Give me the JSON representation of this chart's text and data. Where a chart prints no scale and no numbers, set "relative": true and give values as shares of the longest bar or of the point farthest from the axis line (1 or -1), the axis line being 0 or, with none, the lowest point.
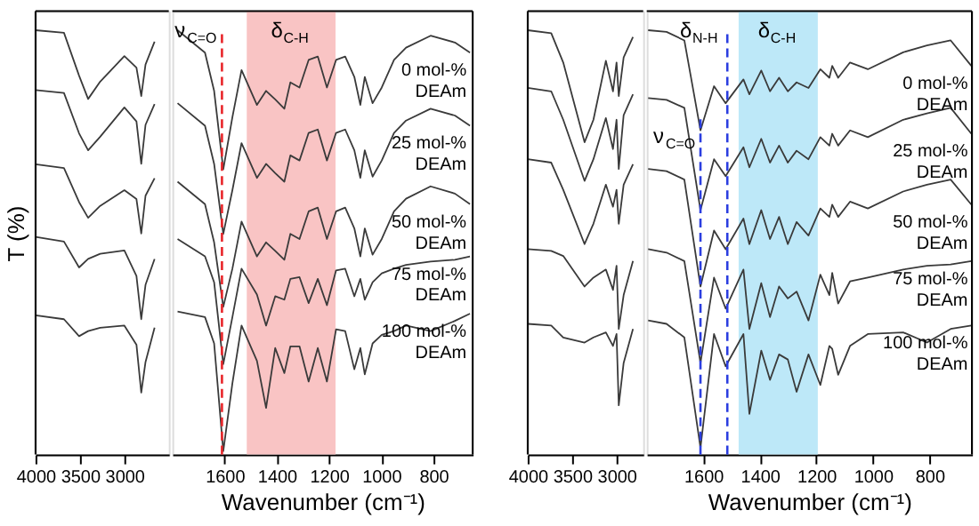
{
  "chart_data": [
    {
      "type": "line",
      "relative": true,
      "ylabel": "T (%)",
      "tick_labels": "x",
      "x": [
        4000,
        3680,
        3510,
        3408,
        3272,
        3000,
        2864,
        2810,
        2762,
        2660
      ],
      "xlim": [
        4000,
        2500
      ],
      "xticks": [
        4000,
        3500,
        3000
      ],
      "series": [
        {
          "color": "#3a3a3a",
          "values": [
            1.0,
            0.994,
            0.893,
            0.838,
            0.879,
            0.939,
            0.912,
            0.845,
            0.919,
            0.973
          ]
        },
        {
          "color": "#3a3a3a",
          "values": [
            0.859,
            0.852,
            0.757,
            0.717,
            0.749,
            0.818,
            0.785,
            0.685,
            0.777,
            0.826
          ]
        },
        {
          "color": "#3a3a3a",
          "values": [
            0.684,
            0.675,
            0.595,
            0.558,
            0.586,
            0.623,
            0.602,
            0.521,
            0.61,
            0.651
          ]
        },
        {
          "color": "#3a3a3a",
          "values": [
            0.513,
            0.502,
            0.441,
            0.461,
            0.473,
            0.481,
            0.421,
            0.319,
            0.4,
            0.461
          ]
        },
        {
          "color": "#3a3a3a",
          "values": [
            0.328,
            0.319,
            0.279,
            0.291,
            0.299,
            0.304,
            0.259,
            0.146,
            0.218,
            0.299
          ]
        }
      ]
    },
    {
      "type": "line",
      "relative": true,
      "xlabel": "Wavenumber (cm⁻¹)",
      "tick_labels": "x",
      "x": [
        1780,
        1675,
        1640,
        1605,
        1570,
        1535,
        1476,
        1441,
        1406,
        1371,
        1348,
        1313,
        1278,
        1243,
        1208,
        1173,
        1138,
        1103,
        1080,
        1063,
        1033,
        998,
        951,
        905,
        811,
        718,
        660
      ],
      "xlim": [
        1800,
        650
      ],
      "xticks": [
        1600,
        1400,
        1200,
        1000,
        800
      ],
      "bands": [
        {
          "axis": "x",
          "from": 1515,
          "to": 1175,
          "label": "δ$_{C-H}$",
          "color": "#f9c4c4"
        }
      ],
      "ref_lines": [
        {
          "axis": "x",
          "value": 1610,
          "label": "ν$_{C=O}$",
          "color": "#e8262a",
          "line_style": "dashed"
        }
      ],
      "series": [
        {
          "name": "0 mol-% DEAm",
          "color": "#3a3a3a",
          "values": [
            1.0,
            0.947,
            0.857,
            0.672,
            0.795,
            0.906,
            0.824,
            0.857,
            0.837,
            0.815,
            0.877,
            0.865,
            0.93,
            0.938,
            0.865,
            0.93,
            0.938,
            0.89,
            0.824,
            0.89,
            0.828,
            0.865,
            0.93,
            0.959,
            0.987,
            0.971,
            0.947
          ]
        },
        {
          "name": "25 mol-% DEAm",
          "color": "#3a3a3a",
          "values": [
            0.828,
            0.775,
            0.685,
            0.52,
            0.623,
            0.734,
            0.652,
            0.685,
            0.663,
            0.643,
            0.705,
            0.693,
            0.758,
            0.766,
            0.693,
            0.758,
            0.766,
            0.717,
            0.652,
            0.717,
            0.655,
            0.693,
            0.758,
            0.787,
            0.815,
            0.799,
            0.775
          ]
        },
        {
          "name": "50 mol-% DEAm",
          "color": "#3a3a3a",
          "values": [
            0.643,
            0.59,
            0.5,
            0.348,
            0.438,
            0.549,
            0.467,
            0.5,
            0.48,
            0.459,
            0.52,
            0.508,
            0.573,
            0.582,
            0.508,
            0.573,
            0.582,
            0.533,
            0.467,
            0.533,
            0.471,
            0.508,
            0.573,
            0.603,
            0.632,
            0.615,
            0.59
          ]
        },
        {
          "name": "75 mol-% DEAm",
          "color": "#3a3a3a",
          "values": [
            0.508,
            0.467,
            0.406,
            0.213,
            0.324,
            0.438,
            0.377,
            0.304,
            0.373,
            0.365,
            0.414,
            0.418,
            0.357,
            0.414,
            0.352,
            0.434,
            0.438,
            0.373,
            0.414,
            0.365,
            0.406,
            0.427,
            0.438,
            0.447,
            0.455,
            0.459,
            0.467
          ]
        },
        {
          "name": "100 mol-% DEAm",
          "color": "#3a3a3a",
          "values": [
            0.337,
            0.324,
            0.262,
            0.008,
            0.168,
            0.304,
            0.221,
            0.11,
            0.251,
            0.192,
            0.255,
            0.255,
            0.172,
            0.251,
            0.172,
            0.295,
            0.291,
            0.201,
            0.251,
            0.189,
            0.262,
            0.282,
            0.291,
            0.304,
            0.291,
            0.315,
            0.332
          ]
        }
      ]
    },
    {
      "type": "line",
      "relative": true,
      "tick_labels": "x",
      "x": [
        4000,
        3735,
        3600,
        3360,
        3260,
        3120,
        3040,
        3000,
        2975,
        2920,
        2815
      ],
      "xlim": [
        4000,
        2700
      ],
      "xticks": [
        4000,
        3500,
        3000
      ],
      "series": [
        {
          "color": "#3a3a3a",
          "values": [
            1.0,
            0.993,
            0.924,
            0.736,
            0.789,
            0.928,
            0.856,
            0.924,
            0.845,
            0.936,
            0.984
          ]
        },
        {
          "color": "#3a3a3a",
          "values": [
            0.864,
            0.856,
            0.789,
            0.645,
            0.696,
            0.793,
            0.72,
            0.789,
            0.673,
            0.8,
            0.849
          ]
        },
        {
          "color": "#3a3a3a",
          "values": [
            0.696,
            0.688,
            0.624,
            0.496,
            0.544,
            0.636,
            0.584,
            0.624,
            0.544,
            0.636,
            0.684
          ]
        },
        {
          "color": "#3a3a3a",
          "values": [
            0.484,
            0.48,
            0.468,
            0.396,
            0.417,
            0.436,
            0.388,
            0.445,
            0.296,
            0.376,
            0.456
          ]
        },
        {
          "color": "#3a3a3a",
          "values": [
            0.308,
            0.304,
            0.276,
            0.264,
            0.276,
            0.288,
            0.256,
            0.284,
            0.116,
            0.216,
            0.296
          ]
        }
      ]
    },
    {
      "type": "line",
      "relative": true,
      "xlabel": "Wavenumber (cm⁻¹)",
      "tick_labels": "x",
      "x": [
        1795,
        1730,
        1667,
        1610,
        1562,
        1521,
        1458,
        1437,
        1395,
        1364,
        1332,
        1301,
        1270,
        1228,
        1186,
        1154,
        1144,
        1123,
        1081,
        1018,
        893,
        809,
        725,
        652
      ],
      "xlim": [
        1800,
        650
      ],
      "xticks": [
        1600,
        1400,
        1200,
        1000,
        800
      ],
      "bands": [
        {
          "axis": "x",
          "from": 1475,
          "to": 1195,
          "label": "δ$_{C-H}$",
          "color": "#bde8f8"
        }
      ],
      "ref_lines": [
        {
          "axis": "x",
          "value": 1515,
          "label": "δ$_{N-H}$",
          "color": "#2b3ee0",
          "line_style": "dashed"
        },
        {
          "axis": "x",
          "value": 1610,
          "label": "ν$_{C=O}$",
          "color": "#2b3ee0",
          "line_style": "dashed"
        }
      ],
      "series": [
        {
          "name": "0 mol-% DEAm",
          "color": "#3a3a3a",
          "values": [
            1.0,
            0.996,
            0.976,
            0.764,
            0.868,
            0.828,
            0.884,
            0.849,
            0.905,
            0.856,
            0.888,
            0.856,
            0.877,
            0.864,
            0.908,
            0.888,
            0.916,
            0.888,
            0.924,
            0.908,
            0.948,
            0.964,
            0.976,
            0.916
          ]
        },
        {
          "name": "25 mol-% DEAm",
          "color": "#3a3a3a",
          "values": [
            0.84,
            0.836,
            0.817,
            0.576,
            0.696,
            0.656,
            0.724,
            0.677,
            0.744,
            0.688,
            0.728,
            0.688,
            0.716,
            0.696,
            0.748,
            0.728,
            0.756,
            0.728,
            0.764,
            0.748,
            0.789,
            0.804,
            0.817,
            0.756
          ]
        },
        {
          "name": "50 mol-% DEAm",
          "color": "#3a3a3a",
          "values": [
            0.673,
            0.668,
            0.648,
            0.396,
            0.528,
            0.484,
            0.556,
            0.496,
            0.576,
            0.508,
            0.56,
            0.496,
            0.548,
            0.516,
            0.58,
            0.56,
            0.589,
            0.56,
            0.596,
            0.58,
            0.62,
            0.636,
            0.648,
            0.589
          ]
        },
        {
          "name": "75 mol-% DEAm",
          "color": "#3a3a3a",
          "values": [
            0.484,
            0.476,
            0.456,
            0.216,
            0.417,
            0.344,
            0.436,
            0.296,
            0.404,
            0.324,
            0.396,
            0.368,
            0.384,
            0.316,
            0.424,
            0.376,
            0.428,
            0.356,
            0.408,
            0.417,
            0.436,
            0.445,
            0.448,
            0.456
          ]
        },
        {
          "name": "100 mol-% DEAm",
          "color": "#3a3a3a",
          "values": [
            0.316,
            0.308,
            0.276,
            0.016,
            0.284,
            0.208,
            0.284,
            0.096,
            0.245,
            0.176,
            0.236,
            0.224,
            0.148,
            0.236,
            0.164,
            0.256,
            0.249,
            0.188,
            0.256,
            0.284,
            0.288,
            0.264,
            0.296,
            0.304
          ]
        }
      ]
    }
  ]
}
